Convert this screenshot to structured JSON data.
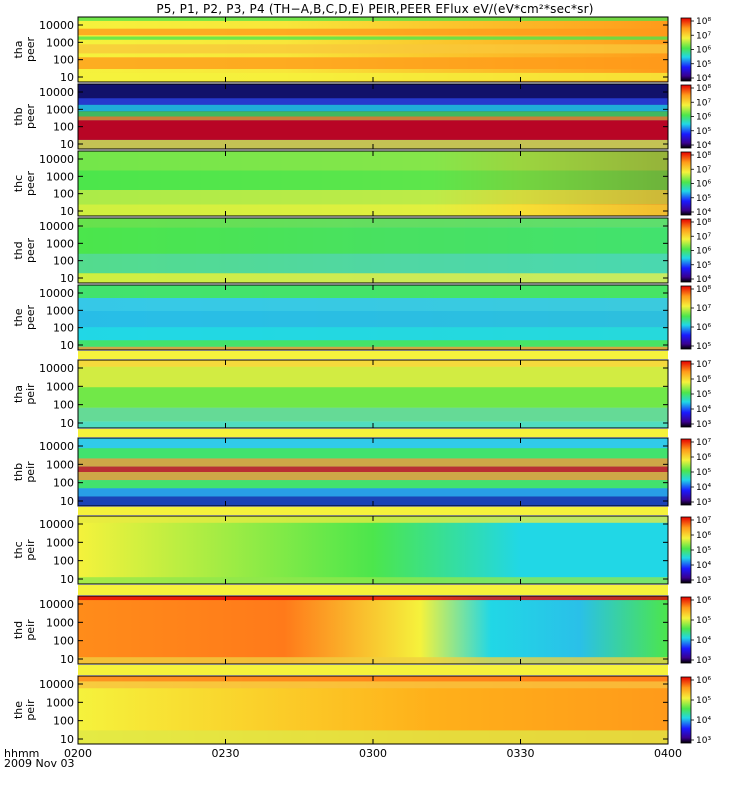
{
  "title": "P5, P1, P2, P3, P4 (TH−A,B,C,D,E) PEIR,PEER EFlux eV/(eV*cm²*sec*sr)",
  "time_axis": {
    "label_line1": "hhmm",
    "label_line2": "2009 Nov 03",
    "ticks": [
      "0200",
      "0230",
      "0300",
      "0330",
      "0400"
    ]
  },
  "colors": {
    "blue_low": "#1a1aa8",
    "cyan": "#21d7e6",
    "green": "#4ce64c",
    "yellow": "#f5f23c",
    "orange": "#ff9a1a",
    "red": "#e60000"
  },
  "chart_data": {
    "type": "heatmap",
    "panels": [
      {
        "probe": "tha",
        "species": "peer",
        "ylabel": "tha\npeer",
        "yticks": [
          "10",
          "100",
          "1000",
          "10000"
        ],
        "colorbar_ticks": [
          "10⁴",
          "10⁵",
          "10⁶",
          "10⁷",
          "10⁸"
        ],
        "colorbar_range": [
          4,
          8
        ]
      },
      {
        "probe": "thb",
        "species": "peer",
        "ylabel": "thb\npeer",
        "yticks": [
          "10",
          "100",
          "1000",
          "10000"
        ],
        "colorbar_ticks": [
          "10⁴",
          "10⁵",
          "10⁶",
          "10⁷",
          "10⁸"
        ],
        "colorbar_range": [
          4,
          8
        ]
      },
      {
        "probe": "thc",
        "species": "peer",
        "ylabel": "thc\npeer",
        "yticks": [
          "10",
          "100",
          "1000",
          "10000"
        ],
        "colorbar_ticks": [
          "10⁴",
          "10⁵",
          "10⁶",
          "10⁷",
          "10⁸"
        ],
        "colorbar_range": [
          4,
          8
        ]
      },
      {
        "probe": "thd",
        "species": "peer",
        "ylabel": "thd\npeer",
        "yticks": [
          "10",
          "100",
          "1000",
          "10000"
        ],
        "colorbar_ticks": [
          "10⁴",
          "10⁵",
          "10⁶",
          "10⁷",
          "10⁸"
        ],
        "colorbar_range": [
          4,
          8
        ]
      },
      {
        "probe": "the",
        "species": "peer",
        "ylabel": "the\npeer",
        "yticks": [
          "10",
          "100",
          "1000",
          "10000"
        ],
        "colorbar_ticks": [
          "10⁵",
          "10⁶",
          "10⁷",
          "10⁸"
        ],
        "colorbar_range": [
          5,
          8
        ]
      },
      {
        "probe": "tha",
        "species": "peir",
        "ylabel": "tha\npeir",
        "yticks": [
          "10",
          "100",
          "1000",
          "10000"
        ],
        "colorbar_ticks": [
          "10³",
          "10⁴",
          "10⁵",
          "10⁶",
          "10⁷"
        ],
        "colorbar_range": [
          3,
          7
        ]
      },
      {
        "probe": "thb",
        "species": "peir",
        "ylabel": "thb\npeir",
        "yticks": [
          "10",
          "100",
          "1000",
          "10000"
        ],
        "colorbar_ticks": [
          "10³",
          "10⁴",
          "10⁵",
          "10⁶",
          "10⁷"
        ],
        "colorbar_range": [
          3,
          7
        ]
      },
      {
        "probe": "thc",
        "species": "peir",
        "ylabel": "thc\npeir",
        "yticks": [
          "10",
          "100",
          "1000",
          "10000"
        ],
        "colorbar_ticks": [
          "10³",
          "10⁴",
          "10⁵",
          "10⁶",
          "10⁷"
        ],
        "colorbar_range": [
          3,
          7
        ]
      },
      {
        "probe": "thd",
        "species": "peir",
        "ylabel": "thd\npeir",
        "yticks": [
          "10",
          "100",
          "1000",
          "10000"
        ],
        "colorbar_ticks": [
          "10³",
          "10⁴",
          "10⁵",
          "10⁶"
        ],
        "colorbar_range": [
          3,
          6
        ]
      },
      {
        "probe": "the",
        "species": "peir",
        "ylabel": "the\npeir",
        "yticks": [
          "10",
          "100",
          "1000",
          "10000"
        ],
        "colorbar_ticks": [
          "10³",
          "10⁴",
          "10⁵",
          "10⁶"
        ],
        "colorbar_range": [
          3,
          6
        ]
      }
    ]
  }
}
